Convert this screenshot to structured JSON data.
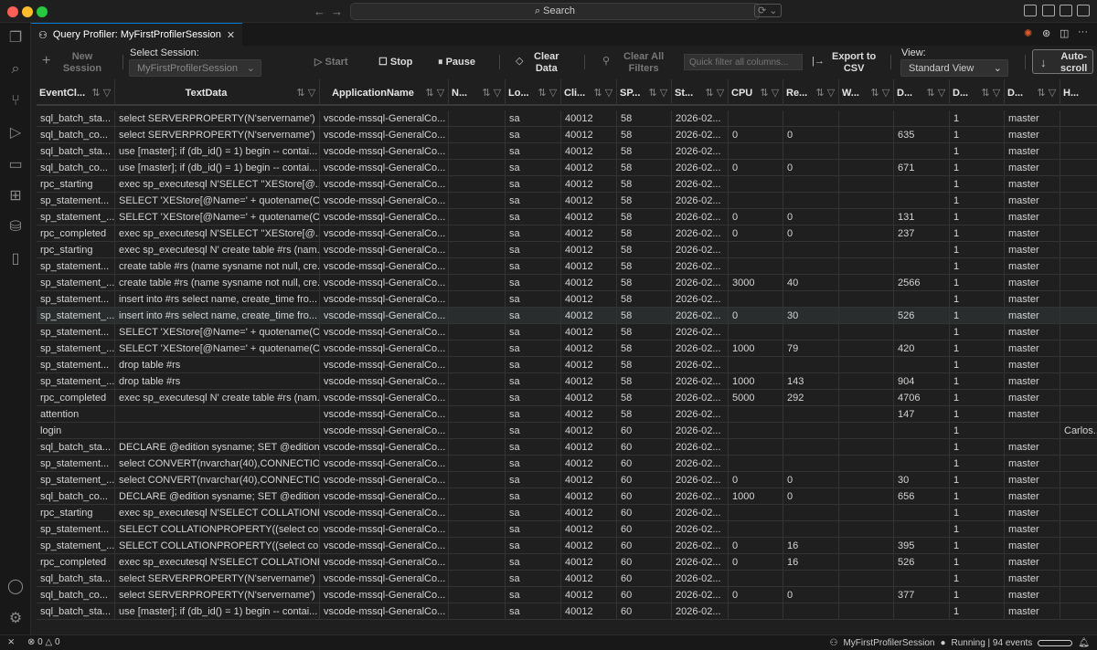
{
  "window": {
    "search": "Search"
  },
  "tab": {
    "title": "Query Profiler: MyFirstProfilerSession"
  },
  "toolbar": {
    "new_session": "New\nSession",
    "select_session_label": "Select Session:",
    "session_value": "MyFirstProfilerSession",
    "start": "Start",
    "stop": "Stop",
    "pause": "Pause",
    "clear_data": "Clear\nData",
    "clear_filters": "Clear All\nFilters",
    "quick_filter_placeholder": "Quick filter all columns...",
    "export": "Export to\nCSV",
    "view_label": "View:",
    "view_value": "Standard View",
    "autoscroll": "Auto-\nscroll"
  },
  "columns": [
    "EventCl...",
    "TextData",
    "ApplicationName",
    "N...",
    "Lo...",
    "Cli...",
    "SP...",
    "St...",
    "CPU",
    "Re...",
    "W...",
    "D...",
    "D...",
    "D...",
    "H..."
  ],
  "rows": [
    [
      "sql_batch_sta...",
      "select SERVERPROPERTY(N'servername')",
      "vscode-mssql-GeneralCo...",
      "",
      "sa",
      "40012",
      "58",
      "2026-02...",
      "",
      "",
      "",
      "",
      "1",
      "master",
      ""
    ],
    [
      "sql_batch_co...",
      "select SERVERPROPERTY(N'servername')",
      "vscode-mssql-GeneralCo...",
      "",
      "sa",
      "40012",
      "58",
      "2026-02...",
      "0",
      "0",
      "",
      "635",
      "1",
      "master",
      ""
    ],
    [
      "sql_batch_sta...",
      "use [master]; if (db_id() = 1) begin -- contai...",
      "vscode-mssql-GeneralCo...",
      "",
      "sa",
      "40012",
      "58",
      "2026-02...",
      "",
      "",
      "",
      "",
      "1",
      "master",
      ""
    ],
    [
      "sql_batch_co...",
      "use [master]; if (db_id() = 1) begin -- contai...",
      "vscode-mssql-GeneralCo...",
      "",
      "sa",
      "40012",
      "58",
      "2026-02...",
      "0",
      "0",
      "",
      "671",
      "1",
      "master",
      ""
    ],
    [
      "rpc_starting",
      "exec sp_executesql N'SELECT ''XEStore[@...",
      "vscode-mssql-GeneralCo...",
      "",
      "sa",
      "40012",
      "58",
      "2026-02...",
      "",
      "",
      "",
      "",
      "1",
      "master",
      ""
    ],
    [
      "sp_statement...",
      "SELECT 'XEStore[@Name=' + quotename(C...",
      "vscode-mssql-GeneralCo...",
      "",
      "sa",
      "40012",
      "58",
      "2026-02...",
      "",
      "",
      "",
      "",
      "1",
      "master",
      ""
    ],
    [
      "sp_statement_...",
      "SELECT 'XEStore[@Name=' + quotename(C...",
      "vscode-mssql-GeneralCo...",
      "",
      "sa",
      "40012",
      "58",
      "2026-02...",
      "0",
      "0",
      "",
      "131",
      "1",
      "master",
      ""
    ],
    [
      "rpc_completed",
      "exec sp_executesql N'SELECT ''XEStore[@...",
      "vscode-mssql-GeneralCo...",
      "",
      "sa",
      "40012",
      "58",
      "2026-02...",
      "0",
      "0",
      "",
      "237",
      "1",
      "master",
      ""
    ],
    [
      "rpc_starting",
      "exec sp_executesql N' create table #rs (nam...",
      "vscode-mssql-GeneralCo...",
      "",
      "sa",
      "40012",
      "58",
      "2026-02...",
      "",
      "",
      "",
      "",
      "1",
      "master",
      ""
    ],
    [
      "sp_statement...",
      "create table #rs (name sysname not null, cre...",
      "vscode-mssql-GeneralCo...",
      "",
      "sa",
      "40012",
      "58",
      "2026-02...",
      "",
      "",
      "",
      "",
      "1",
      "master",
      ""
    ],
    [
      "sp_statement_...",
      "create table #rs (name sysname not null, cre...",
      "vscode-mssql-GeneralCo...",
      "",
      "sa",
      "40012",
      "58",
      "2026-02...",
      "3000",
      "40",
      "",
      "2566",
      "1",
      "master",
      ""
    ],
    [
      "sp_statement...",
      "insert into #rs select name, create_time fro...",
      "vscode-mssql-GeneralCo...",
      "",
      "sa",
      "40012",
      "58",
      "2026-02...",
      "",
      "",
      "",
      "",
      "1",
      "master",
      ""
    ],
    [
      "sp_statement_...",
      "insert into #rs select name, create_time fro...",
      "vscode-mssql-GeneralCo...",
      "",
      "sa",
      "40012",
      "58",
      "2026-02...",
      "0",
      "30",
      "",
      "526",
      "1",
      "master",
      ""
    ],
    [
      "sp_statement...",
      "SELECT 'XEStore[@Name=' + quotename(C...",
      "vscode-mssql-GeneralCo...",
      "",
      "sa",
      "40012",
      "58",
      "2026-02...",
      "",
      "",
      "",
      "",
      "1",
      "master",
      ""
    ],
    [
      "sp_statement_...",
      "SELECT 'XEStore[@Name=' + quotename(C...",
      "vscode-mssql-GeneralCo...",
      "",
      "sa",
      "40012",
      "58",
      "2026-02...",
      "1000",
      "79",
      "",
      "420",
      "1",
      "master",
      ""
    ],
    [
      "sp_statement...",
      "drop table #rs",
      "vscode-mssql-GeneralCo...",
      "",
      "sa",
      "40012",
      "58",
      "2026-02...",
      "",
      "",
      "",
      "",
      "1",
      "master",
      ""
    ],
    [
      "sp_statement_...",
      "drop table #rs",
      "vscode-mssql-GeneralCo...",
      "",
      "sa",
      "40012",
      "58",
      "2026-02...",
      "1000",
      "143",
      "",
      "904",
      "1",
      "master",
      ""
    ],
    [
      "rpc_completed",
      "exec sp_executesql N' create table #rs (nam...",
      "vscode-mssql-GeneralCo...",
      "",
      "sa",
      "40012",
      "58",
      "2026-02...",
      "5000",
      "292",
      "",
      "4706",
      "1",
      "master",
      ""
    ],
    [
      "attention",
      "",
      "vscode-mssql-GeneralCo...",
      "",
      "sa",
      "40012",
      "58",
      "2026-02...",
      "",
      "",
      "",
      "147",
      "1",
      "master",
      ""
    ],
    [
      "login",
      "",
      "vscode-mssql-GeneralCo...",
      "",
      "sa",
      "40012",
      "60",
      "2026-02...",
      "",
      "",
      "",
      "",
      "1",
      "",
      "Carlos..."
    ],
    [
      "sql_batch_sta...",
      "DECLARE @edition sysname; SET @edition ...",
      "vscode-mssql-GeneralCo...",
      "",
      "sa",
      "40012",
      "60",
      "2026-02...",
      "",
      "",
      "",
      "",
      "1",
      "master",
      ""
    ],
    [
      "sp_statement...",
      "select CONVERT(nvarchar(40),CONNECTIO...",
      "vscode-mssql-GeneralCo...",
      "",
      "sa",
      "40012",
      "60",
      "2026-02...",
      "",
      "",
      "",
      "",
      "1",
      "master",
      ""
    ],
    [
      "sp_statement_...",
      "select CONVERT(nvarchar(40),CONNECTIO...",
      "vscode-mssql-GeneralCo...",
      "",
      "sa",
      "40012",
      "60",
      "2026-02...",
      "0",
      "0",
      "",
      "30",
      "1",
      "master",
      ""
    ],
    [
      "sql_batch_co...",
      "DECLARE @edition sysname; SET @edition ...",
      "vscode-mssql-GeneralCo...",
      "",
      "sa",
      "40012",
      "60",
      "2026-02...",
      "1000",
      "0",
      "",
      "656",
      "1",
      "master",
      ""
    ],
    [
      "rpc_starting",
      "exec sp_executesql N'SELECT COLLATIONP...",
      "vscode-mssql-GeneralCo...",
      "",
      "sa",
      "40012",
      "60",
      "2026-02...",
      "",
      "",
      "",
      "",
      "1",
      "master",
      ""
    ],
    [
      "sp_statement...",
      "SELECT COLLATIONPROPERTY((select coll...",
      "vscode-mssql-GeneralCo...",
      "",
      "sa",
      "40012",
      "60",
      "2026-02...",
      "",
      "",
      "",
      "",
      "1",
      "master",
      ""
    ],
    [
      "sp_statement_...",
      "SELECT COLLATIONPROPERTY((select coll...",
      "vscode-mssql-GeneralCo...",
      "",
      "sa",
      "40012",
      "60",
      "2026-02...",
      "0",
      "16",
      "",
      "395",
      "1",
      "master",
      ""
    ],
    [
      "rpc_completed",
      "exec sp_executesql N'SELECT COLLATIONP...",
      "vscode-mssql-GeneralCo...",
      "",
      "sa",
      "40012",
      "60",
      "2026-02...",
      "0",
      "16",
      "",
      "526",
      "1",
      "master",
      ""
    ],
    [
      "sql_batch_sta...",
      "select SERVERPROPERTY(N'servername')",
      "vscode-mssql-GeneralCo...",
      "",
      "sa",
      "40012",
      "60",
      "2026-02...",
      "",
      "",
      "",
      "",
      "1",
      "master",
      ""
    ],
    [
      "sql_batch_co...",
      "select SERVERPROPERTY(N'servername')",
      "vscode-mssql-GeneralCo...",
      "",
      "sa",
      "40012",
      "60",
      "2026-02...",
      "0",
      "0",
      "",
      "377",
      "1",
      "master",
      ""
    ],
    [
      "sql_batch_sta...",
      "use [master]; if (db_id() = 1) begin -- contai...",
      "vscode-mssql-GeneralCo...",
      "",
      "sa",
      "40012",
      "60",
      "2026-02...",
      "",
      "",
      "",
      "",
      "1",
      "master",
      ""
    ]
  ],
  "status": {
    "errors": "0",
    "warnings": "0",
    "session": "MyFirstProfilerSession",
    "state": "Running | 94 events"
  },
  "colors": {
    "accent": "#0078d4",
    "background": "#1f1f1f"
  }
}
